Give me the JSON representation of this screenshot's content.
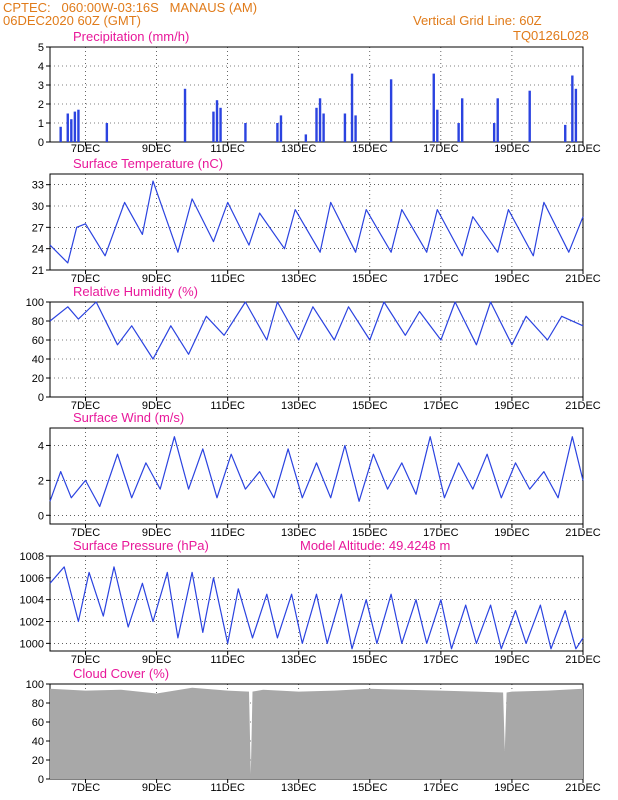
{
  "header": {
    "line1": "CPTEC:   060:00W-03:16S   MANAUS (AM)",
    "line2": "06DEC2020 60Z (GMT)",
    "grid_note": "Vertical Grid Line: 60Z",
    "code": "TQ0126L028"
  },
  "x_axis": {
    "ticks": [
      7,
      9,
      11,
      13,
      15,
      17,
      19,
      21
    ],
    "tick_labels": [
      "7DEC",
      "9DEC",
      "11DEC",
      "13DEC",
      "15DEC",
      "17DEC",
      "19DEC",
      "21DEC"
    ],
    "range_days": [
      6.0,
      21.0
    ]
  },
  "colors": {
    "series": "#2b43e0",
    "title": "#e8189a",
    "header": "#e07b1a",
    "cloud": "#a8a8a8",
    "grid": "#000000"
  },
  "chart_data": [
    {
      "type": "bar",
      "title": "Precipitation (mm/h)",
      "ylim": [
        0,
        5
      ],
      "yticks": [
        0,
        1,
        2,
        3,
        4,
        5
      ],
      "x": [
        6.3,
        6.5,
        6.6,
        6.7,
        6.8,
        7.6,
        9.8,
        10.6,
        10.7,
        10.8,
        11.5,
        12.4,
        12.5,
        13.2,
        13.5,
        13.6,
        13.7,
        14.3,
        14.5,
        14.6,
        15.6,
        16.8,
        16.9,
        17.5,
        17.6,
        18.5,
        18.6,
        19.5,
        20.5,
        20.7,
        20.8
      ],
      "values": [
        0.8,
        1.5,
        1.2,
        1.6,
        1.7,
        1.0,
        2.8,
        1.6,
        2.2,
        1.8,
        1.0,
        1.0,
        1.4,
        0.4,
        1.8,
        2.3,
        1.5,
        1.5,
        3.6,
        1.4,
        3.3,
        3.6,
        1.7,
        1.0,
        2.3,
        1.0,
        2.3,
        2.7,
        0.9,
        3.5,
        2.8
      ]
    },
    {
      "type": "line",
      "title": "Surface Temperature (nC)",
      "ylim": [
        21,
        34.5
      ],
      "yticks": [
        21,
        24,
        27,
        30,
        33
      ],
      "x": [
        6.0,
        6.5,
        6.75,
        7.0,
        7.55,
        8.1,
        8.6,
        8.9,
        9.6,
        10.0,
        10.6,
        11.0,
        11.6,
        11.9,
        12.6,
        12.9,
        13.6,
        13.9,
        14.6,
        14.9,
        15.6,
        15.9,
        16.6,
        16.9,
        17.6,
        17.9,
        18.6,
        18.9,
        19.6,
        19.9,
        20.6,
        21.0
      ],
      "values": [
        24.5,
        22.0,
        27.0,
        27.5,
        23.0,
        30.5,
        26.0,
        33.5,
        23.5,
        31.0,
        25.0,
        30.5,
        24.5,
        29.0,
        24.0,
        29.5,
        23.5,
        30.5,
        23.5,
        29.5,
        23.5,
        29.5,
        23.5,
        29.5,
        23.0,
        28.5,
        23.5,
        29.5,
        23.0,
        30.5,
        23.5,
        28.5
      ]
    },
    {
      "type": "line",
      "title": "Relative Humidity (%)",
      "ylim": [
        0,
        100
      ],
      "yticks": [
        0,
        20,
        40,
        60,
        80,
        100
      ],
      "x": [
        6.0,
        6.5,
        6.8,
        7.3,
        7.9,
        8.3,
        8.9,
        9.4,
        9.9,
        10.4,
        10.9,
        11.5,
        12.1,
        12.4,
        13.0,
        13.4,
        14.0,
        14.4,
        15.0,
        15.4,
        16.0,
        16.4,
        17.0,
        17.4,
        18.0,
        18.4,
        19.0,
        19.4,
        20.0,
        20.4,
        21.0
      ],
      "values": [
        80,
        95,
        82,
        100,
        55,
        75,
        40,
        75,
        45,
        85,
        65,
        100,
        60,
        100,
        60,
        95,
        60,
        95,
        60,
        100,
        65,
        90,
        60,
        100,
        55,
        100,
        55,
        85,
        60,
        85,
        75
      ]
    },
    {
      "type": "line",
      "title": "Surface Wind (m/s)",
      "ylim": [
        -0.5,
        5
      ],
      "yticks": [
        0,
        2,
        4
      ],
      "x": [
        6.0,
        6.3,
        6.6,
        7.0,
        7.4,
        7.9,
        8.3,
        8.7,
        9.1,
        9.5,
        9.9,
        10.3,
        10.7,
        11.1,
        11.5,
        11.9,
        12.3,
        12.7,
        13.1,
        13.5,
        13.9,
        14.3,
        14.7,
        15.1,
        15.5,
        15.9,
        16.3,
        16.7,
        17.1,
        17.5,
        17.9,
        18.3,
        18.7,
        19.1,
        19.5,
        19.9,
        20.3,
        20.7,
        21.0
      ],
      "values": [
        0.8,
        2.5,
        1.0,
        2.0,
        0.5,
        3.5,
        1.0,
        3.0,
        1.5,
        4.5,
        1.5,
        3.8,
        1.0,
        3.5,
        1.5,
        2.5,
        1.0,
        3.8,
        1.0,
        3.0,
        1.0,
        4.0,
        0.8,
        3.5,
        1.5,
        3.0,
        1.2,
        4.5,
        1.0,
        3.0,
        1.5,
        3.5,
        1.0,
        3.0,
        1.5,
        2.5,
        1.0,
        4.5,
        2.0
      ]
    },
    {
      "type": "line",
      "title": "Surface Pressure (hPa)",
      "subtitle": "Model Altitude: 49.4248 m",
      "ylim": [
        999.3,
        1008
      ],
      "yticks": [
        1000,
        1002,
        1004,
        1006,
        1008
      ],
      "x": [
        6.0,
        6.4,
        6.8,
        7.1,
        7.5,
        7.8,
        8.2,
        8.6,
        8.9,
        9.3,
        9.6,
        10.0,
        10.3,
        10.6,
        11.0,
        11.3,
        11.7,
        12.1,
        12.4,
        12.8,
        13.1,
        13.5,
        13.8,
        14.2,
        14.5,
        14.9,
        15.2,
        15.6,
        15.9,
        16.3,
        16.6,
        17.0,
        17.3,
        17.7,
        18.0,
        18.4,
        18.7,
        19.1,
        19.4,
        19.8,
        20.1,
        20.5,
        20.8,
        21.0
      ],
      "values": [
        1005.5,
        1007.0,
        1002.0,
        1006.5,
        1002.5,
        1007.0,
        1001.5,
        1005.5,
        1002.0,
        1006.5,
        1000.5,
        1006.5,
        1001.0,
        1006.0,
        1000.0,
        1005.0,
        1000.5,
        1004.5,
        1000.5,
        1004.5,
        1000.0,
        1004.5,
        1000.0,
        1004.5,
        999.5,
        1004.0,
        1000.0,
        1004.5,
        1000.0,
        1004.0,
        1000.0,
        1004.0,
        999.5,
        1003.5,
        1000.0,
        1003.5,
        999.5,
        1003.0,
        1000.0,
        1003.5,
        999.5,
        1003.0,
        999.5,
        1000.5
      ]
    },
    {
      "type": "area",
      "title": "Cloud Cover (%)",
      "ylim": [
        0,
        100
      ],
      "yticks": [
        0,
        20,
        40,
        60,
        80,
        100
      ],
      "x": [
        6.0,
        7.0,
        8.0,
        9.0,
        10.0,
        11.0,
        11.6,
        11.65,
        11.7,
        12.0,
        13.0,
        14.0,
        15.0,
        16.0,
        17.0,
        18.0,
        18.75,
        18.8,
        18.85,
        19.0,
        20.0,
        21.0
      ],
      "values": [
        95,
        93,
        94,
        90,
        96,
        93,
        92,
        5,
        92,
        94,
        92,
        93,
        95,
        94,
        93,
        92,
        91,
        30,
        91,
        92,
        93,
        95
      ]
    }
  ]
}
